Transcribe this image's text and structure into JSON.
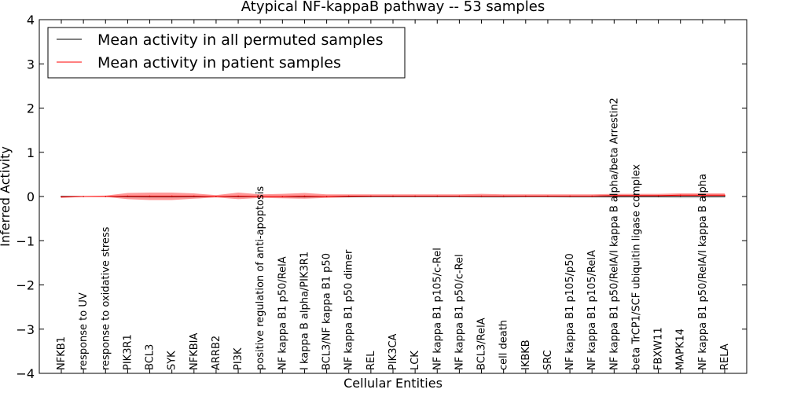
{
  "chart_data": {
    "type": "line",
    "title": "Atypical NF-kappaB pathway -- 53 samples",
    "xlabel": "Cellular Entities",
    "ylabel": "Inferred Activity",
    "ylim": [
      -4,
      4
    ],
    "yticks": [
      -4,
      -3,
      -2,
      -1,
      0,
      1,
      2,
      3,
      4
    ],
    "ytick_labels": [
      "−4",
      "−3",
      "−2",
      "−1",
      "0",
      "1",
      "2",
      "3",
      "4"
    ],
    "grid": false,
    "legend_position": "top-left",
    "categories": [
      "NFKB1",
      "response to UV",
      "response to oxidative stress",
      "PIK3R1",
      "BCL3",
      "SYK",
      "NFKBIA",
      "ARRB2",
      "PI3K",
      "positive regulation of anti-apoptosis",
      "NF kappa B1 p50/RelA",
      "I kappa B alpha/PIK3R1",
      "BCL3/NF kappa B1 p50",
      "NF kappa B1 p50 dimer",
      "REL",
      "PIK3CA",
      "LCK",
      "NF kappa B1 p105/c-Rel",
      "NF kappa B1 p50/c-Rel",
      "BCL3/RelA",
      "cell death",
      "IKBKB",
      "SRC",
      "NF kappa B1 p105/p50",
      "NF kappa B1 p105/RelA",
      "NF kappa B1 p50/RelA/I kappa B alpha/beta Arrestin2",
      "beta TrCP1/SCF ubiquitin ligase complex",
      "FBXW11",
      "MAPK14",
      "NF kappa B1 p50/RelA/I kappa B alpha",
      "RELA"
    ],
    "series": [
      {
        "name": "Mean activity in all permuted samples",
        "color": "#000000",
        "values": [
          0,
          0,
          0,
          0,
          0,
          0,
          0,
          0,
          0,
          0,
          0,
          0,
          0,
          0,
          0,
          0,
          0,
          0,
          0,
          0,
          0,
          0,
          0,
          0,
          0,
          0,
          0,
          0,
          0,
          0,
          0
        ],
        "band_lower": [
          -0.03,
          -0.01,
          -0.01,
          -0.02,
          -0.03,
          -0.03,
          -0.02,
          -0.01,
          -0.02,
          -0.02,
          -0.03,
          -0.03,
          -0.02,
          -0.02,
          -0.02,
          -0.02,
          -0.02,
          -0.02,
          -0.02,
          -0.03,
          -0.03,
          -0.02,
          -0.02,
          -0.03,
          -0.03,
          -0.04,
          -0.03,
          -0.03,
          -0.04,
          -0.04,
          -0.03
        ],
        "band_upper": [
          0.02,
          0.01,
          0.01,
          0.02,
          0.02,
          0.02,
          0.02,
          0.01,
          0.02,
          0.02,
          0.02,
          0.02,
          0.02,
          0.02,
          0.02,
          0.02,
          0.02,
          0.02,
          0.02,
          0.02,
          0.02,
          0.02,
          0.02,
          0.02,
          0.02,
          0.02,
          0.02,
          0.02,
          0.02,
          0.02,
          0.02
        ]
      },
      {
        "name": "Mean activity in patient samples",
        "color": "#ff0000",
        "values": [
          -0.01,
          0,
          0,
          0.01,
          0.01,
          0.01,
          0.01,
          0,
          0.01,
          0,
          0,
          0.01,
          0,
          0.01,
          0.01,
          0.01,
          0.01,
          0.01,
          0.01,
          0.01,
          0.01,
          0.01,
          0.01,
          0.01,
          0.01,
          0.02,
          0.02,
          0.02,
          0.03,
          0.03,
          0.03
        ],
        "band_lower": [
          -0.03,
          -0.01,
          -0.01,
          -0.06,
          -0.08,
          -0.08,
          -0.05,
          -0.02,
          -0.06,
          -0.03,
          -0.04,
          -0.05,
          -0.03,
          -0.02,
          -0.01,
          -0.01,
          -0.01,
          -0.01,
          -0.01,
          -0.01,
          -0.01,
          -0.01,
          -0.01,
          -0.01,
          -0.01,
          0,
          0,
          0,
          0,
          0,
          0
        ],
        "band_upper": [
          0.01,
          0.01,
          0.02,
          0.08,
          0.09,
          0.09,
          0.07,
          0.03,
          0.09,
          0.05,
          0.06,
          0.08,
          0.05,
          0.05,
          0.05,
          0.05,
          0.05,
          0.05,
          0.05,
          0.06,
          0.05,
          0.05,
          0.05,
          0.05,
          0.05,
          0.06,
          0.06,
          0.06,
          0.07,
          0.07,
          0.07
        ]
      }
    ]
  }
}
